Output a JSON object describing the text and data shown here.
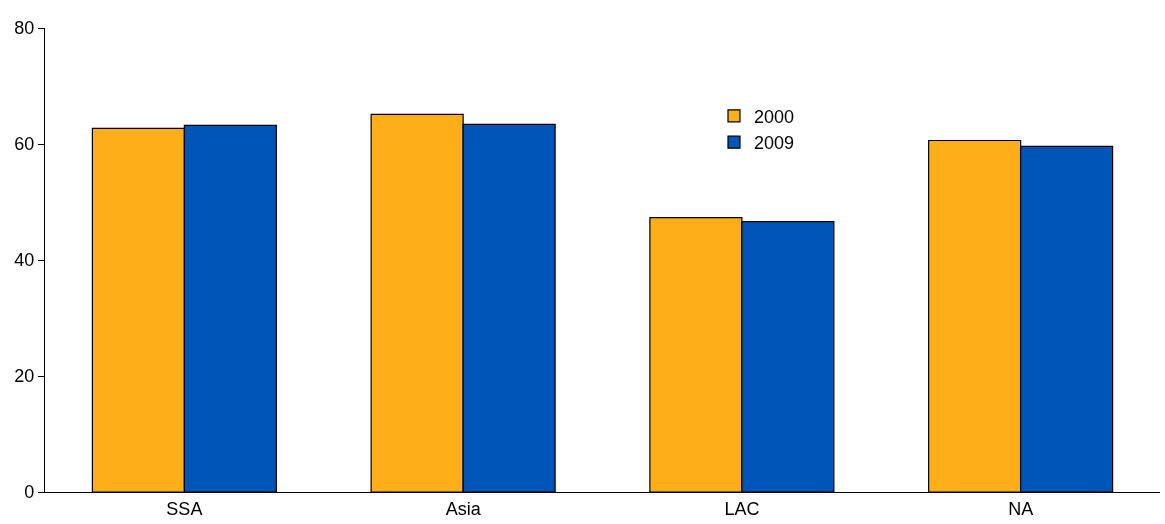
{
  "chart_data": {
    "type": "bar",
    "categories": [
      "SSA",
      "Asia",
      "LAC",
      "NA"
    ],
    "series": [
      {
        "name": "2000",
        "color": "#fdae18",
        "values": [
          62.7,
          65.1,
          47.3,
          60.6
        ]
      },
      {
        "name": "2009",
        "color": "#0055b8",
        "values": [
          63.2,
          63.4,
          46.6,
          59.6
        ]
      }
    ],
    "ylim": [
      0,
      80
    ],
    "yticks": [
      0,
      20,
      40,
      60,
      80
    ],
    "grid": false,
    "legend": "top"
  }
}
